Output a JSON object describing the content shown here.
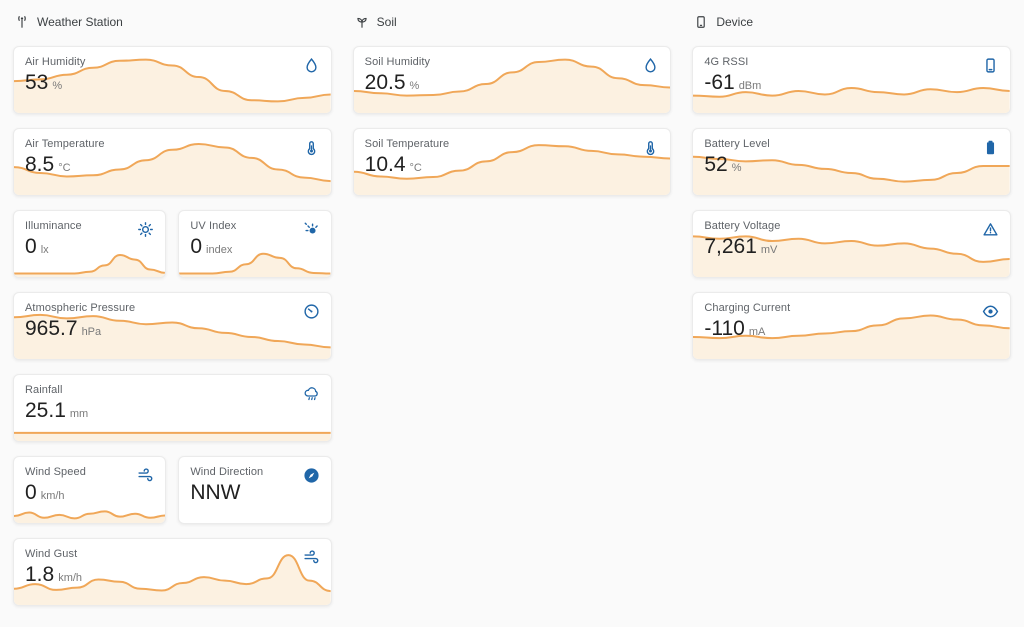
{
  "colors": {
    "spark_line": "#f0a758",
    "spark_fill": "#fcf1e1",
    "icon_blue": "#2066a8"
  },
  "sections": {
    "weather_station": "Weather Station",
    "soil": "Soil",
    "device": "Device"
  },
  "cards": {
    "air_humidity": {
      "title": "Air Humidity",
      "value": "53",
      "unit": "%",
      "icon": "droplet-icon",
      "spark": [
        55,
        58,
        66,
        78,
        90,
        92,
        82,
        62,
        38,
        22,
        20,
        26,
        32
      ]
    },
    "air_temperature": {
      "title": "Air Temperature",
      "value": "8.5",
      "unit": "°C",
      "icon": "thermometer-icon",
      "spark": [
        48,
        38,
        32,
        34,
        44,
        60,
        78,
        88,
        82,
        64,
        44,
        30,
        24
      ]
    },
    "illuminance": {
      "title": "Illuminance",
      "value": "0",
      "unit": "lx",
      "icon": "sun-icon",
      "spark": [
        6,
        6,
        6,
        6,
        6,
        9,
        20,
        38,
        30,
        13,
        7
      ]
    },
    "uv_index": {
      "title": "UV Index",
      "value": "0",
      "unit": "index",
      "icon": "uv-index-icon",
      "spark": [
        6,
        6,
        6,
        9,
        22,
        40,
        33,
        15,
        7,
        6
      ]
    },
    "atmospheric_pressure": {
      "title": "Atmospheric Pressure",
      "value": "965.7",
      "unit": "hPa",
      "icon": "gauge-icon",
      "spark": [
        72,
        76,
        70,
        74,
        66,
        60,
        63,
        53,
        45,
        38,
        31,
        25,
        20
      ]
    },
    "rainfall": {
      "title": "Rainfall",
      "value": "25.1",
      "unit": "mm",
      "icon": "rain-cloud-icon",
      "spark": [
        14,
        14,
        14,
        14,
        14,
        14,
        14,
        14,
        14,
        14
      ]
    },
    "wind_speed": {
      "title": "Wind Speed",
      "value": "0",
      "unit": "km/h",
      "icon": "wind-icon",
      "spark": [
        12,
        18,
        9,
        14,
        8,
        16,
        20,
        11,
        16,
        9,
        13
      ]
    },
    "wind_direction": {
      "title": "Wind Direction",
      "value": "NNW",
      "unit": "",
      "icon": "compass-icon"
    },
    "wind_gust": {
      "title": "Wind Gust",
      "value": "1.8",
      "unit": "km/h",
      "icon": "wind-icon",
      "spark": [
        28,
        36,
        26,
        30,
        44,
        40,
        28,
        25,
        38,
        48,
        42,
        36,
        46,
        86,
        42,
        24
      ]
    },
    "soil_humidity": {
      "title": "Soil Humidity",
      "value": "20.5",
      "unit": "%",
      "icon": "droplet-icon",
      "spark": [
        38,
        34,
        30,
        31,
        37,
        50,
        70,
        88,
        92,
        80,
        60,
        48,
        44
      ]
    },
    "soil_temperature": {
      "title": "Soil Temperature",
      "value": "10.4",
      "unit": "°C",
      "icon": "thermometer-icon",
      "spark": [
        40,
        32,
        28,
        31,
        42,
        58,
        74,
        86,
        84,
        76,
        70,
        66,
        63
      ]
    },
    "rssi_4g": {
      "title": "4G RSSI",
      "value": "-61",
      "unit": "dBm",
      "icon": "smartphone-icon",
      "spark": [
        30,
        28,
        36,
        30,
        38,
        32,
        43,
        36,
        32,
        41,
        36,
        43,
        38
      ]
    },
    "battery_level": {
      "title": "Battery Level",
      "value": "52",
      "unit": "%",
      "icon": "battery-icon",
      "spark": [
        66,
        62,
        58,
        60,
        52,
        45,
        38,
        28,
        23,
        26,
        38,
        50,
        50
      ]
    },
    "battery_voltage": {
      "title": "Battery Voltage",
      "value": "7,261",
      "unit": "mV",
      "icon": "alert-triangle-icon",
      "spark": [
        70,
        66,
        70,
        62,
        66,
        58,
        62,
        54,
        58,
        49,
        40,
        26,
        31
      ]
    },
    "charging_current": {
      "title": "Charging Current",
      "value": "-110",
      "unit": "mA",
      "icon": "eye-icon",
      "spark": [
        38,
        36,
        40,
        36,
        40,
        44,
        48,
        58,
        70,
        75,
        68,
        58,
        53
      ]
    }
  }
}
